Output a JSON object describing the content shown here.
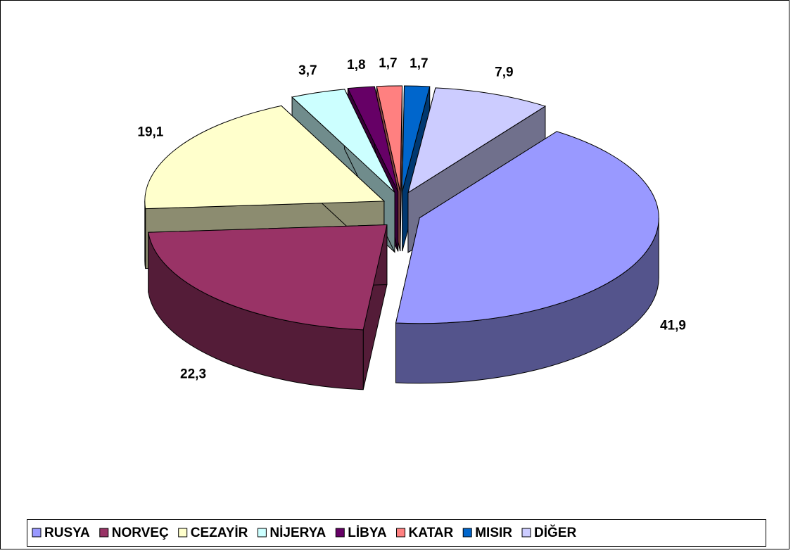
{
  "chart_data": {
    "type": "pie",
    "categories": [
      "RUSYA",
      "NORVEÇ",
      "CEZAYİR",
      "NİJERYA",
      "LİBYA",
      "KATAR",
      "MISIR",
      "DİĞER"
    ],
    "values": [
      41.9,
      22.3,
      19.1,
      3.7,
      1.8,
      1.7,
      1.7,
      7.9
    ],
    "value_labels": [
      "41,9",
      "22,3",
      "19,1",
      "3,7",
      "1,8",
      "1,7",
      "1,7",
      "7,9"
    ],
    "colors": [
      "#9999ff",
      "#993366",
      "#ffffcc",
      "#ccffff",
      "#660066",
      "#ff8080",
      "#0066cc",
      "#ccccff"
    ],
    "legend": "bottom"
  }
}
